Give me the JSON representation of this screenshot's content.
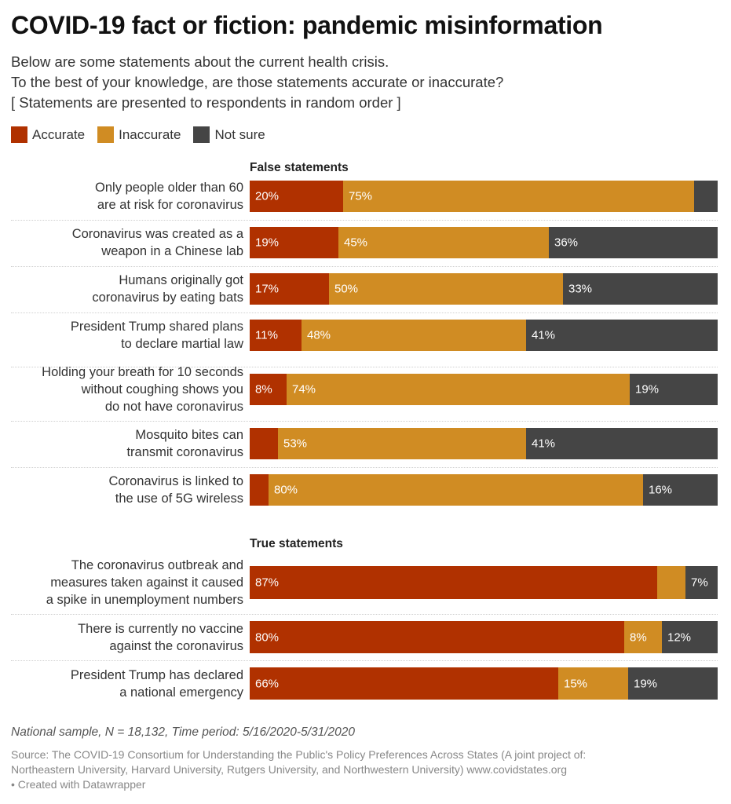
{
  "header": {
    "title": "COVID-19 fact or fiction: pandemic misinformation",
    "intro": [
      "Below are some statements about the current health crisis.",
      "To the best of your knowledge, are those statements accurate or inaccurate?",
      "[ Statements are presented to respondents in random order ]"
    ]
  },
  "legend": [
    {
      "label": "Accurate",
      "color": "#b03100"
    },
    {
      "label": "Inaccurate",
      "color": "#d08c23"
    },
    {
      "label": "Not sure",
      "color": "#454545"
    }
  ],
  "chart_data": {
    "type": "bar",
    "orientation": "horizontal",
    "stacked": true,
    "series_names": [
      "Accurate",
      "Inaccurate",
      "Not sure"
    ],
    "colors": [
      "#b03100",
      "#d08c23",
      "#454545"
    ],
    "groups": [
      {
        "title": "False statements",
        "rows": [
          {
            "label": [
              "Only people older than 60",
              "are at risk for coronavirus"
            ],
            "values": [
              20,
              75,
              5
            ],
            "labels": [
              "20%",
              "75%",
              ""
            ]
          },
          {
            "label": [
              "Coronavirus was created as a",
              "weapon in a Chinese lab"
            ],
            "values": [
              19,
              45,
              36
            ],
            "labels": [
              "19%",
              "45%",
              "36%"
            ]
          },
          {
            "label": [
              "Humans originally got",
              "coronavirus by eating bats"
            ],
            "values": [
              17,
              50,
              33
            ],
            "labels": [
              "17%",
              "50%",
              "33%"
            ]
          },
          {
            "label": [
              "President Trump shared plans",
              "to declare martial law"
            ],
            "values": [
              11,
              48,
              41
            ],
            "labels": [
              "11%",
              "48%",
              "41%"
            ]
          },
          {
            "label": [
              "Holding your breath for 10 seconds",
              "without coughing shows you",
              "do not have coronavirus"
            ],
            "values": [
              8,
              74,
              19
            ],
            "labels": [
              "8%",
              "74%",
              "19%"
            ]
          },
          {
            "label": [
              "Mosquito bites can",
              "transmit coronavirus"
            ],
            "values": [
              6,
              53,
              41
            ],
            "labels": [
              "",
              "53%",
              "41%"
            ]
          },
          {
            "label": [
              "Coronavirus is linked to",
              "the use of 5G wireless"
            ],
            "values": [
              4,
              80,
              16
            ],
            "labels": [
              "",
              "80%",
              "16%"
            ]
          }
        ]
      },
      {
        "title": "True statements",
        "rows": [
          {
            "label": [
              "The coronavirus outbreak and",
              "measures taken against it caused",
              "a spike in unemployment numbers"
            ],
            "values": [
              87,
              6,
              7
            ],
            "labels": [
              "87%",
              "",
              "7%"
            ]
          },
          {
            "label": [
              "There is currently no vaccine",
              "against the coronavirus"
            ],
            "values": [
              80,
              8,
              12
            ],
            "labels": [
              "80%",
              "8%",
              "12%"
            ]
          },
          {
            "label": [
              "President Trump has declared",
              "a national emergency"
            ],
            "values": [
              66,
              15,
              19
            ],
            "labels": [
              "66%",
              "15%",
              "19%"
            ]
          }
        ]
      }
    ]
  },
  "footer": {
    "note": "National sample, N = 18,132, Time period: 5/16/2020-5/31/2020",
    "source": [
      "Source: The COVID-19 Consortium for Understanding the Public's Policy Preferences Across States (A joint project of:",
      "Northeastern University, Harvard University, Rutgers University, and Northwestern University) www.covidstates.org",
      "• Created with Datawrapper"
    ]
  }
}
